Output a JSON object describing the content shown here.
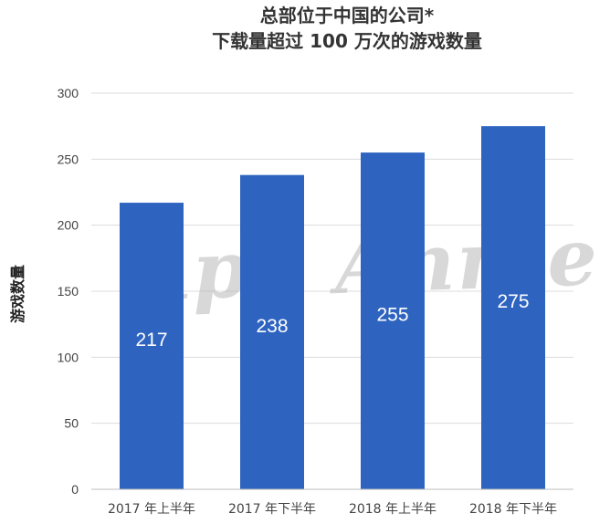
{
  "chart_data": {
    "type": "bar",
    "title_lines": [
      "总部位于中国的公司*",
      "下载量超过 100 万次的游戏数量"
    ],
    "ylabel": "游戏数量",
    "xlabel": "",
    "categories": [
      "2017 年上半年",
      "2017 年下半年",
      "2018 年上半年",
      "2018 年下半年"
    ],
    "values": [
      217,
      238,
      255,
      275
    ],
    "data_labels": [
      "217",
      "238",
      "255",
      "275"
    ],
    "ylim": [
      0,
      300
    ],
    "yticks": [
      0,
      50,
      100,
      150,
      200,
      250,
      300
    ],
    "grid": true,
    "bar_color": "#2e64c0"
  },
  "watermark": "App Annie",
  "colors": {
    "bar": "#2e64c0",
    "grid": "#dcdcdc",
    "axis": "#bdbdbd"
  }
}
